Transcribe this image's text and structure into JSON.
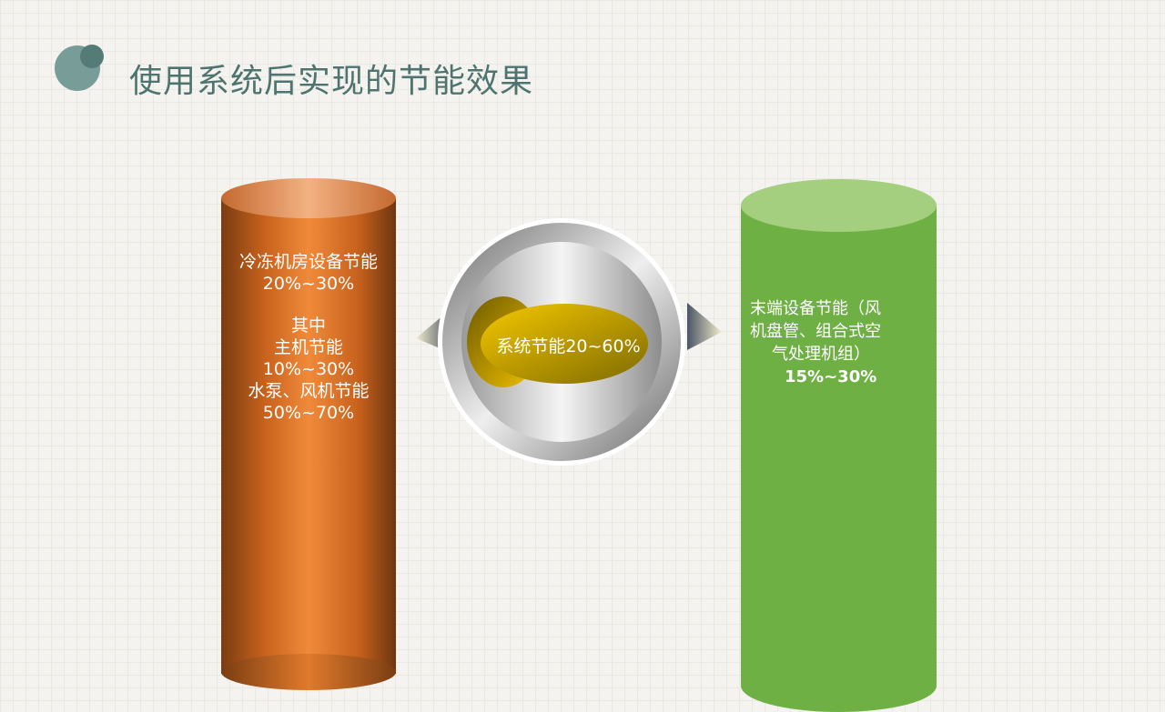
{
  "title": "使用系统后实现的节能效果",
  "left": {
    "lines": [
      "冷冻机房设备节能",
      "20%~30%",
      "其中",
      "主机节能",
      "10%~30%",
      "水泵、风机节能",
      "50%~70%"
    ],
    "color": "#e9822f"
  },
  "center": {
    "label": "系统节能20~60%",
    "color": "#e8bc00"
  },
  "right": {
    "lines": [
      "末端设备节能（风",
      "机盘管、组合式空",
      "气处理机组）",
      "15%~30%"
    ],
    "color": "#6fb045"
  }
}
